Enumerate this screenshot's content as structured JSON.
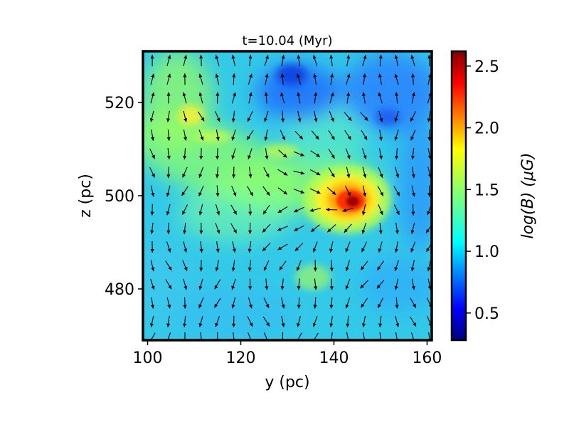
{
  "chart_data": {
    "type": "heatmap",
    "title": "t=10.04 (Myr)",
    "xlabel": "y (pc)",
    "ylabel": "z (pc)",
    "xlim": [
      99,
      161
    ],
    "ylim": [
      469,
      531
    ],
    "xticks": [
      100,
      120,
      140,
      160
    ],
    "yticks": [
      480,
      500,
      520
    ],
    "colorbar": {
      "label": "log(B) (μG)",
      "range": [
        0.28,
        2.62
      ],
      "ticks": [
        0.5,
        1.0,
        1.5,
        2.0,
        2.5
      ],
      "colormap": "jet"
    },
    "field": {
      "quantity": "log(B)",
      "background_level": 1.2,
      "features": [
        {
          "name": "dense core",
          "y": 143.5,
          "z": 499,
          "log_b": 2.6
        },
        {
          "name": "halo around core",
          "y": 141,
          "z": 500,
          "log_b": 1.8
        },
        {
          "name": "low-field pocket",
          "y": 131,
          "z": 522,
          "log_b": 0.8
        },
        {
          "name": "low-field pocket",
          "y": 150,
          "z": 518,
          "log_b": 0.85
        },
        {
          "name": "filament",
          "y": 110,
          "z": 516,
          "log_b": 1.55
        },
        {
          "name": "filament",
          "y": 128,
          "z": 510,
          "log_b": 1.5
        }
      ]
    },
    "vectors": {
      "description": "magnetic field direction arrows on a regular grid",
      "y_positions": [
        101,
        104.5,
        108,
        111.5,
        115,
        118.5,
        122,
        125.5,
        129,
        132.5,
        136,
        139.5,
        143,
        146.5,
        150,
        153.5,
        157,
        160.5
      ],
      "z_positions": [
        529,
        525,
        521,
        517,
        513,
        509,
        505,
        501,
        497,
        493,
        489,
        485,
        481,
        477,
        473,
        469.5
      ]
    }
  },
  "colors": {
    "frame": "#000000",
    "arrow": "#000000",
    "background": "#ffffff"
  }
}
